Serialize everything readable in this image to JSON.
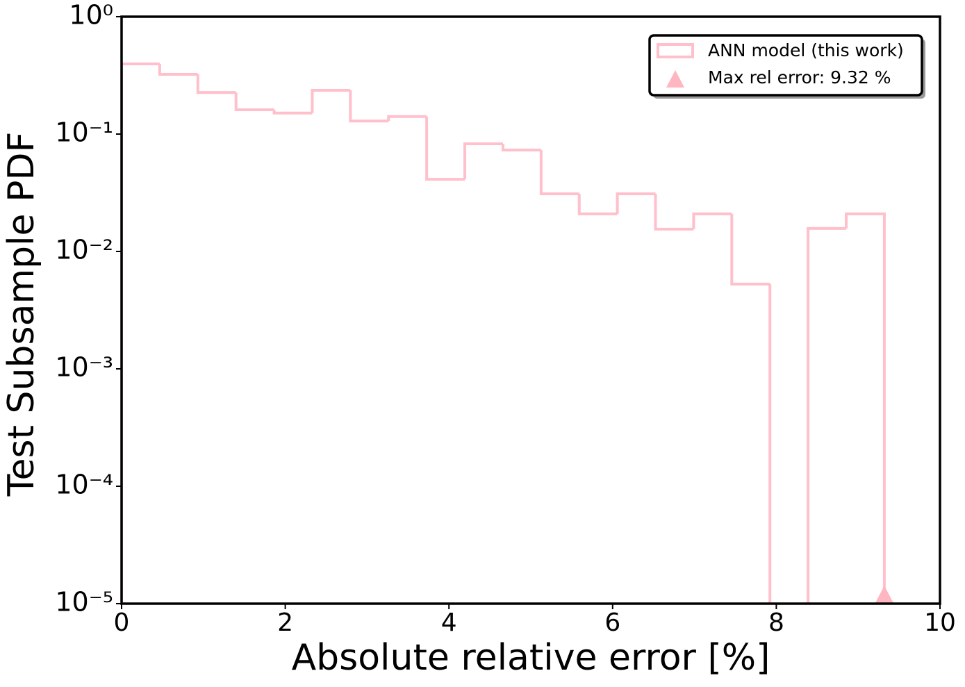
{
  "chart_data": {
    "type": "histogram",
    "xlabel": "Absolute relative error [%]",
    "ylabel": "Test Subsample PDF",
    "bins": [
      0,
      0.466,
      0.932,
      1.398,
      1.864,
      2.33,
      2.796,
      3.262,
      3.728,
      4.194,
      4.66,
      5.126,
      5.592,
      6.058,
      6.524,
      6.99,
      7.456,
      7.922,
      8.388,
      8.854,
      9.32
    ],
    "series": [
      {
        "name": "ANN model (this work)",
        "color": "#ffc0cb",
        "values": [
          0.396,
          0.323,
          0.226,
          0.161,
          0.151,
          0.236,
          0.129,
          0.141,
          0.0412,
          0.0826,
          0.0731,
          0.031,
          0.0209,
          0.031,
          0.0155,
          0.0209,
          0.00527,
          0,
          0.0157,
          0.0209
        ]
      }
    ],
    "marker": {
      "name": "Max rel error: 9.32 %",
      "x": 9.32,
      "y": 1e-05,
      "color": "#ffb6c1"
    },
    "xlim": [
      0,
      10
    ],
    "xticks": [
      0,
      2,
      4,
      6,
      8,
      10
    ],
    "ylim": [
      1e-05,
      1
    ],
    "ylog": true,
    "yticks": [
      {
        "value": 1e-05,
        "label": "10⁻⁵"
      },
      {
        "value": 0.0001,
        "label": "10⁻⁴"
      },
      {
        "value": 0.001,
        "label": "10⁻³"
      },
      {
        "value": 0.01,
        "label": "10⁻²"
      },
      {
        "value": 0.1,
        "label": "10⁻¹"
      },
      {
        "value": 1,
        "label": "10⁰"
      }
    ],
    "legend": "upper right"
  }
}
